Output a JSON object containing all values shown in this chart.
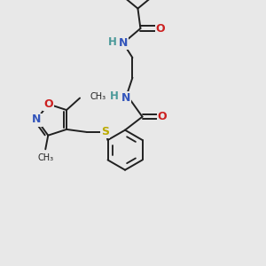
{
  "background_color": "#e8e8e8",
  "bond_color": "#202020",
  "bond_width": 1.4,
  "atom_colors": {
    "N": "#3355bb",
    "O": "#cc2020",
    "S": "#bbaa00",
    "H": "#4a9999"
  },
  "fig_size": [
    3.0,
    3.0
  ],
  "dpi": 100
}
